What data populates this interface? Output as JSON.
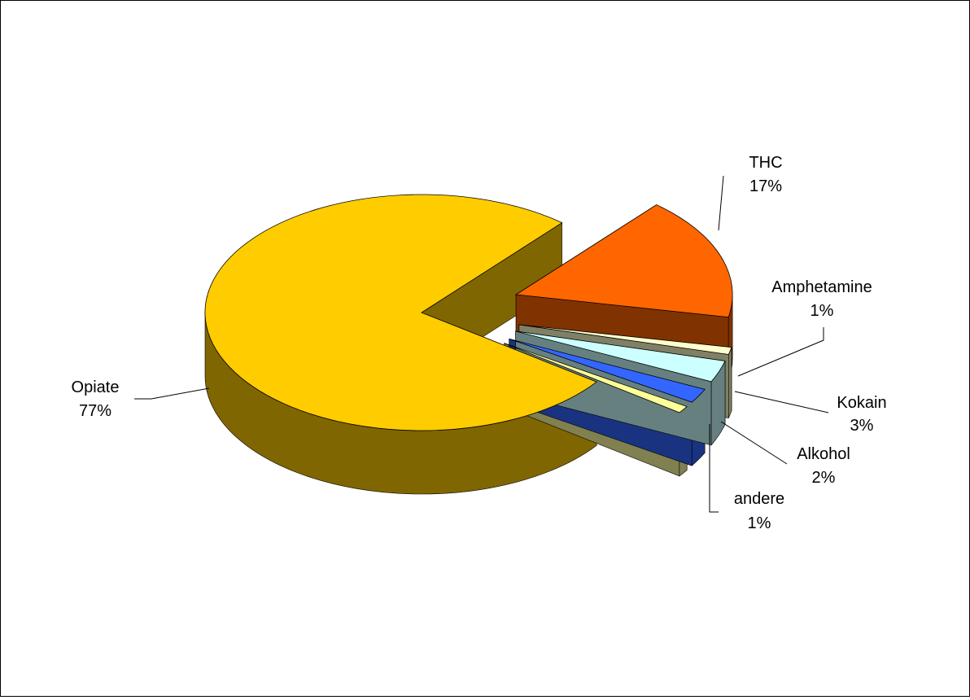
{
  "chart_data": {
    "type": "pie",
    "style": "3d-exploded",
    "title": "",
    "slices": [
      {
        "label": "Opiate",
        "value": 77,
        "value_label": "77%",
        "color": "#FFCC00",
        "side_color": "#806600"
      },
      {
        "label": "THC",
        "value": 17,
        "value_label": "17%",
        "color": "#FF6600",
        "side_color": "#803300"
      },
      {
        "label": "Amphetamine",
        "value": 1,
        "value_label": "1%",
        "color": "#FFFFCC",
        "side_color": "#808066"
      },
      {
        "label": "Kokain",
        "value": 3,
        "value_label": "3%",
        "color": "#CCFFFF",
        "side_color": "#668080"
      },
      {
        "label": "Alkohol",
        "value": 2,
        "value_label": "2%",
        "color": "#3366FF",
        "side_color": "#1A3380"
      },
      {
        "label": "andere",
        "value": 1,
        "value_label": "1%",
        "color": "#FFFF99",
        "side_color": "#808050"
      }
    ]
  }
}
